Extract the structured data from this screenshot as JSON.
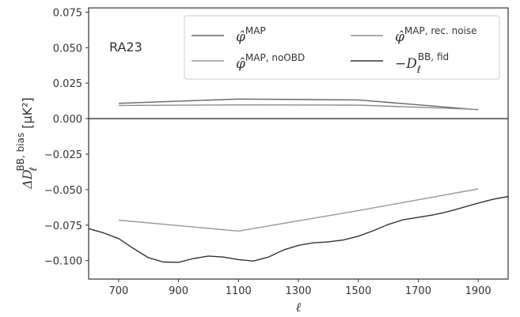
{
  "chart_data": {
    "type": "line",
    "annotation": "RA23",
    "xlabel": "ℓ",
    "ylabel": {
      "main": "ΔD",
      "sup": "BB, bias",
      "sub": "ℓ",
      "unit": "[μK²]"
    },
    "xlim": [
      600,
      2000
    ],
    "ylim": [
      -0.113,
      0.078
    ],
    "x_ticks": [
      700,
      900,
      1100,
      1300,
      1500,
      1700,
      1900
    ],
    "y_ticks": [
      -0.1,
      -0.075,
      -0.05,
      -0.025,
      0.0,
      0.025,
      0.05,
      0.075
    ],
    "y_tick_labels": [
      "−0.100",
      "−0.075",
      "−0.050",
      "−0.025",
      "0.000",
      "0.025",
      "0.050",
      "0.075"
    ],
    "zero_line": true,
    "legend_placement": "top-right",
    "series": [
      {
        "name": "φ̂ MAP",
        "sup": "MAP",
        "color": "#666666",
        "x": [
          700,
          1100,
          1500,
          1900
        ],
        "y": [
          0.0108,
          0.0138,
          0.0132,
          0.0063
        ]
      },
      {
        "name": "φ̂ MAP, rec. noise",
        "sup": "MAP, rec. noise",
        "color": "#8c8c8c",
        "x": [
          700,
          1100,
          1500,
          1900
        ],
        "y": [
          0.0093,
          0.0097,
          0.0095,
          0.0065
        ]
      },
      {
        "name": "φ̂ MAP, noOBD",
        "sup": "MAP, noOBD",
        "color": "#999999",
        "x": [
          700,
          1100,
          1500,
          1900
        ],
        "y": [
          -0.0715,
          -0.0792,
          -0.0648,
          -0.0495
        ]
      },
      {
        "name": "−D ℓ BB, fid",
        "sup": "BB, fid",
        "sub": "ℓ",
        "color": "#333333",
        "x": [
          600,
          650,
          700,
          750,
          800,
          850,
          900,
          950,
          1000,
          1050,
          1100,
          1150,
          1200,
          1250,
          1300,
          1350,
          1400,
          1450,
          1500,
          1550,
          1600,
          1650,
          1700,
          1750,
          1800,
          1850,
          1900,
          1950,
          2000
        ],
        "y": [
          -0.0775,
          -0.0805,
          -0.0845,
          -0.0915,
          -0.098,
          -0.101,
          -0.1012,
          -0.0985,
          -0.0968,
          -0.0975,
          -0.0993,
          -0.1003,
          -0.0975,
          -0.0925,
          -0.0893,
          -0.0875,
          -0.0868,
          -0.0855,
          -0.0828,
          -0.079,
          -0.0745,
          -0.0712,
          -0.0695,
          -0.0678,
          -0.0655,
          -0.0625,
          -0.0595,
          -0.0568,
          -0.0548
        ]
      }
    ]
  }
}
